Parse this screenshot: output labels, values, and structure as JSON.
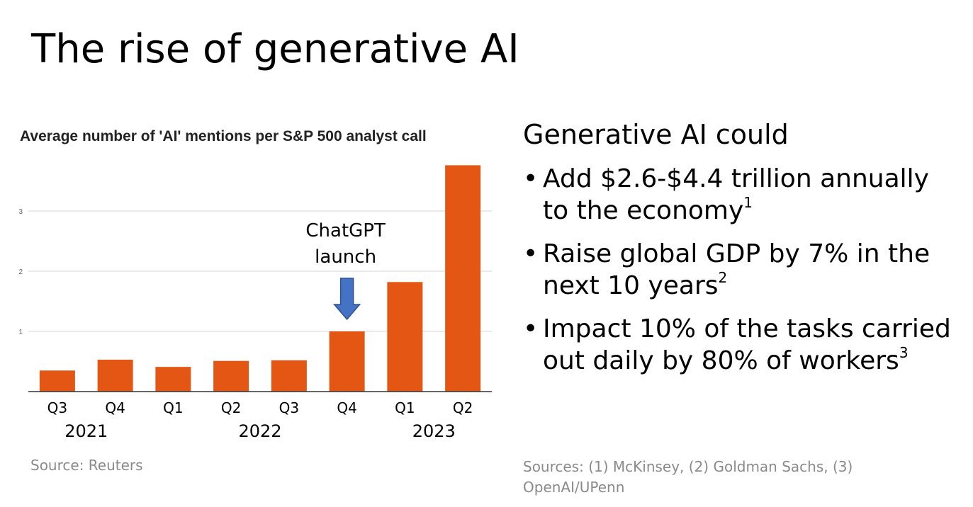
{
  "slide": {
    "title": "The rise of generative AI"
  },
  "chart_data": {
    "type": "bar",
    "title": "Average number of 'AI' mentions per S&P 500 analyst call",
    "categories": [
      "Q3",
      "Q4",
      "Q1",
      "Q2",
      "Q3",
      "Q4",
      "Q1",
      "Q2"
    ],
    "years": [
      "2021",
      "2022",
      "2023"
    ],
    "values": [
      0.35,
      0.53,
      0.41,
      0.51,
      0.52,
      1.0,
      1.82,
      3.76
    ],
    "yticks": [
      1,
      2,
      3
    ],
    "ylim": [
      0,
      3.9
    ],
    "xlabel": "",
    "ylabel": "",
    "grid": true,
    "bar_color": "#e35613",
    "annotation": {
      "lines": [
        "ChatGPT",
        "launch"
      ],
      "target_index": 5,
      "arrow_color": "#4472c4"
    }
  },
  "chart_source": "Source: Reuters",
  "panel": {
    "heading": "Generative AI could",
    "bullets": [
      {
        "text": "Add $2.6-$4.4 trillion annually to the economy",
        "ref": "1"
      },
      {
        "text": "Raise global GDP by 7% in the next 10 years",
        "ref": "2"
      },
      {
        "text": "Impact 10% of the tasks carried out daily by 80% of workers",
        "ref": "3"
      }
    ],
    "sources": "Sources: (1) McKinsey, (2) Goldman Sachs, (3) OpenAI/UPenn"
  }
}
